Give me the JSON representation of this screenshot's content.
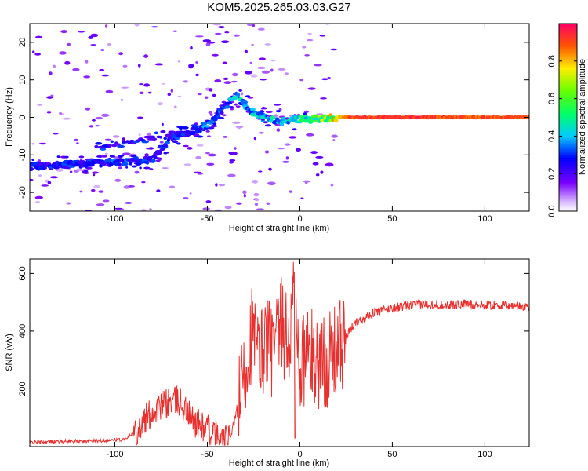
{
  "title": "KOM5.2025.265.03.03.G27",
  "chart_data": [
    {
      "type": "heatmap",
      "name": "spectrogram",
      "xlabel": "Height of straight line (km)",
      "ylabel": "Frequency (Hz)",
      "xlim": [
        -146,
        124
      ],
      "ylim": [
        -25,
        25
      ],
      "xticks": [
        -100,
        -50,
        0,
        50,
        100
      ],
      "xtick_labels": [
        "-100",
        "-50",
        "0",
        "50",
        "100"
      ],
      "yticks": [
        -20,
        -10,
        0,
        10,
        20
      ],
      "ytick_labels": [
        "-20",
        "-10",
        "0",
        "10",
        "20"
      ],
      "colorbar": {
        "label": "Normalized spectral amplitude",
        "range": [
          0,
          1
        ],
        "ticks": [
          0.0,
          0.2,
          0.4,
          0.6,
          0.8
        ],
        "tick_labels": [
          "0.0",
          "0.2",
          "0.4",
          "0.6",
          "0.8"
        ]
      },
      "ridge": [
        {
          "x": -140,
          "freq": -13,
          "amp": 0.28
        },
        {
          "x": -120,
          "freq": -12.5,
          "amp": 0.3
        },
        {
          "x": -100,
          "freq": -12,
          "amp": 0.32
        },
        {
          "x": -80,
          "freq": -11.5,
          "amp": 0.3
        },
        {
          "x": -75,
          "freq": -8,
          "amp": 0.28
        },
        {
          "x": -70,
          "freq": -5.5,
          "amp": 0.3
        },
        {
          "x": -60,
          "freq": -4,
          "amp": 0.3
        },
        {
          "x": -50,
          "freq": -2,
          "amp": 0.35
        },
        {
          "x": -40,
          "freq": 3,
          "amp": 0.3
        },
        {
          "x": -34,
          "freq": 6,
          "amp": 0.45
        },
        {
          "x": -28,
          "freq": 2,
          "amp": 0.4
        },
        {
          "x": -20,
          "freq": 0,
          "amp": 0.45
        },
        {
          "x": -10,
          "freq": -1,
          "amp": 0.4
        },
        {
          "x": 0,
          "freq": -0.5,
          "amp": 0.5
        },
        {
          "x": 10,
          "freq": -0.5,
          "amp": 0.6
        },
        {
          "x": 20,
          "freq": 0,
          "amp": 0.8
        },
        {
          "x": 30,
          "freq": 0,
          "amp": 0.98
        },
        {
          "x": 60,
          "freq": 0,
          "amp": 0.98
        },
        {
          "x": 90,
          "freq": 0,
          "amp": 0.95
        },
        {
          "x": 124,
          "freq": 0,
          "amp": 0.95
        }
      ]
    },
    {
      "type": "line",
      "name": "snr",
      "xlabel": "Height of straight line (km)",
      "ylabel": "SNR (v/v)",
      "xlim": [
        -146,
        124
      ],
      "ylim": [
        0,
        650
      ],
      "xticks": [
        -100,
        -50,
        0,
        50,
        100
      ],
      "xtick_labels": [
        "-100",
        "-50",
        "0",
        "50",
        "100"
      ],
      "yticks": [
        200,
        400,
        600
      ],
      "ytick_labels": [
        "200",
        "400",
        "600"
      ],
      "color": "#e8312f",
      "series": [
        {
          "name": "SNR",
          "x": [
            -146,
            -130,
            -110,
            -95,
            -88,
            -80,
            -72,
            -65,
            -58,
            -50,
            -42,
            -38,
            -34,
            -30,
            -26,
            -22,
            -18,
            -14,
            -10,
            -6,
            -3,
            0,
            4,
            8,
            12,
            16,
            20,
            25,
            30,
            40,
            50,
            60,
            70,
            80,
            90,
            100,
            110,
            124
          ],
          "y": [
            15,
            18,
            20,
            25,
            60,
            120,
            150,
            160,
            90,
            60,
            20,
            25,
            120,
            250,
            400,
            300,
            380,
            320,
            420,
            350,
            520,
            280,
            330,
            300,
            290,
            300,
            330,
            380,
            430,
            465,
            480,
            490,
            495,
            490,
            495,
            490,
            490,
            485
          ]
        }
      ]
    }
  ]
}
